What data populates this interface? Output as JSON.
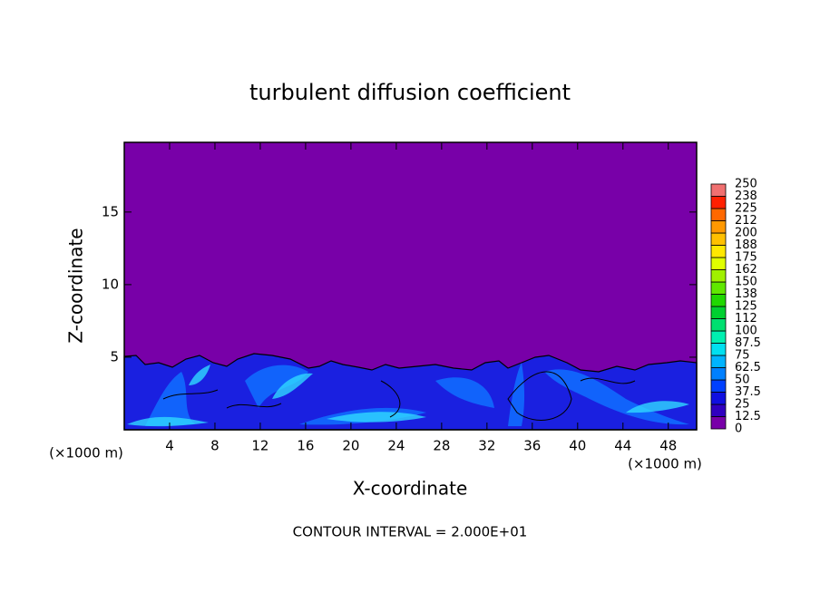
{
  "chart_data": {
    "type": "contour",
    "title": "turbulent diffusion coefficient",
    "x_label": "X-coordinate",
    "y_label": "Z-coordinate",
    "x_unit": "(×1000 m)",
    "note": "CONTOUR INTERVAL = 2.000E+01",
    "xlim": [
      0,
      50.5
    ],
    "xticks": [
      4,
      8,
      12,
      16,
      20,
      24,
      28,
      32,
      36,
      40,
      44,
      48
    ],
    "ylim": [
      0,
      19.8
    ],
    "yticks": [
      5,
      10,
      15
    ],
    "colorbar": {
      "ticks": [
        0,
        12.5,
        25,
        37.5,
        50,
        62.5,
        75,
        87.5,
        100,
        {
          "value": 112.5,
          "label": "112"
        },
        125,
        {
          "value": 137.5,
          "label": "138"
        },
        150,
        {
          "value": 162.5,
          "label": "162"
        },
        175,
        {
          "value": 187.5,
          "label": "188"
        },
        200,
        {
          "value": 212.5,
          "label": "212"
        },
        225,
        {
          "value": 237.5,
          "label": "238"
        },
        250
      ],
      "colors": [
        "#7800a8",
        "#3000c0",
        "#1010e0",
        "#0040ff",
        "#0080ff",
        "#00b4ff",
        "#00e0f0",
        "#00f0b0",
        "#00e070",
        "#00d030",
        "#20d800",
        "#60e800",
        "#a0f000",
        "#e0ff00",
        "#ffe800",
        "#ffc000",
        "#ff9800",
        "#ff6800",
        "#ff2000",
        "#f07070"
      ]
    }
  }
}
